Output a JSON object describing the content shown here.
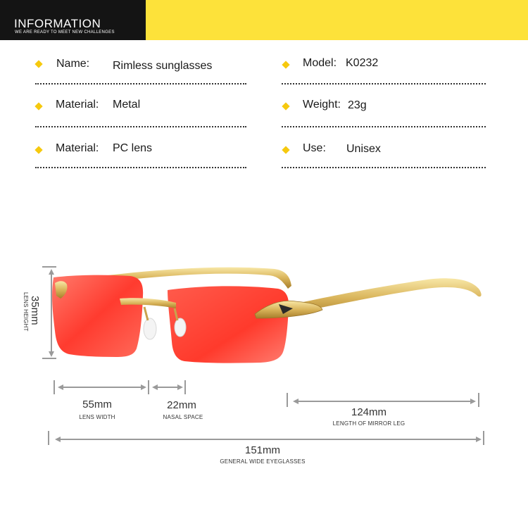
{
  "banner": {
    "title": "INFORMATION",
    "subtitle": "WE ARE READY TO MEET NEW CHALLENGES",
    "dark_color": "#141414",
    "accent_color": "#fde23a"
  },
  "specs": {
    "left": [
      {
        "label": "Name:",
        "value": "Rimless sunglasses"
      },
      {
        "label": "Material:",
        "value": "Metal"
      },
      {
        "label": "Material:",
        "value": "PC lens"
      }
    ],
    "right": [
      {
        "label": "Model:",
        "value": "K0232"
      },
      {
        "label": "Weight:",
        "value": "23g"
      },
      {
        "label": "Use:",
        "value": "Unisex"
      }
    ]
  },
  "product": {
    "lens_color": "#ff4a3d",
    "frame_color": "#d9b45a"
  },
  "dimensions": {
    "lens_height": {
      "value": "35mm",
      "caption": "LENS HEIGHT"
    },
    "lens_width": {
      "value": "55mm",
      "caption": "LENS WIDTH"
    },
    "nasal_space": {
      "value": "22mm",
      "caption": "NASAL SPACE"
    },
    "leg_length": {
      "value": "124mm",
      "caption": "LENGTH OF MIRROR LEG"
    },
    "total_width": {
      "value": "151mm",
      "caption": "GENERAL WIDE EYEGLASSES"
    }
  }
}
